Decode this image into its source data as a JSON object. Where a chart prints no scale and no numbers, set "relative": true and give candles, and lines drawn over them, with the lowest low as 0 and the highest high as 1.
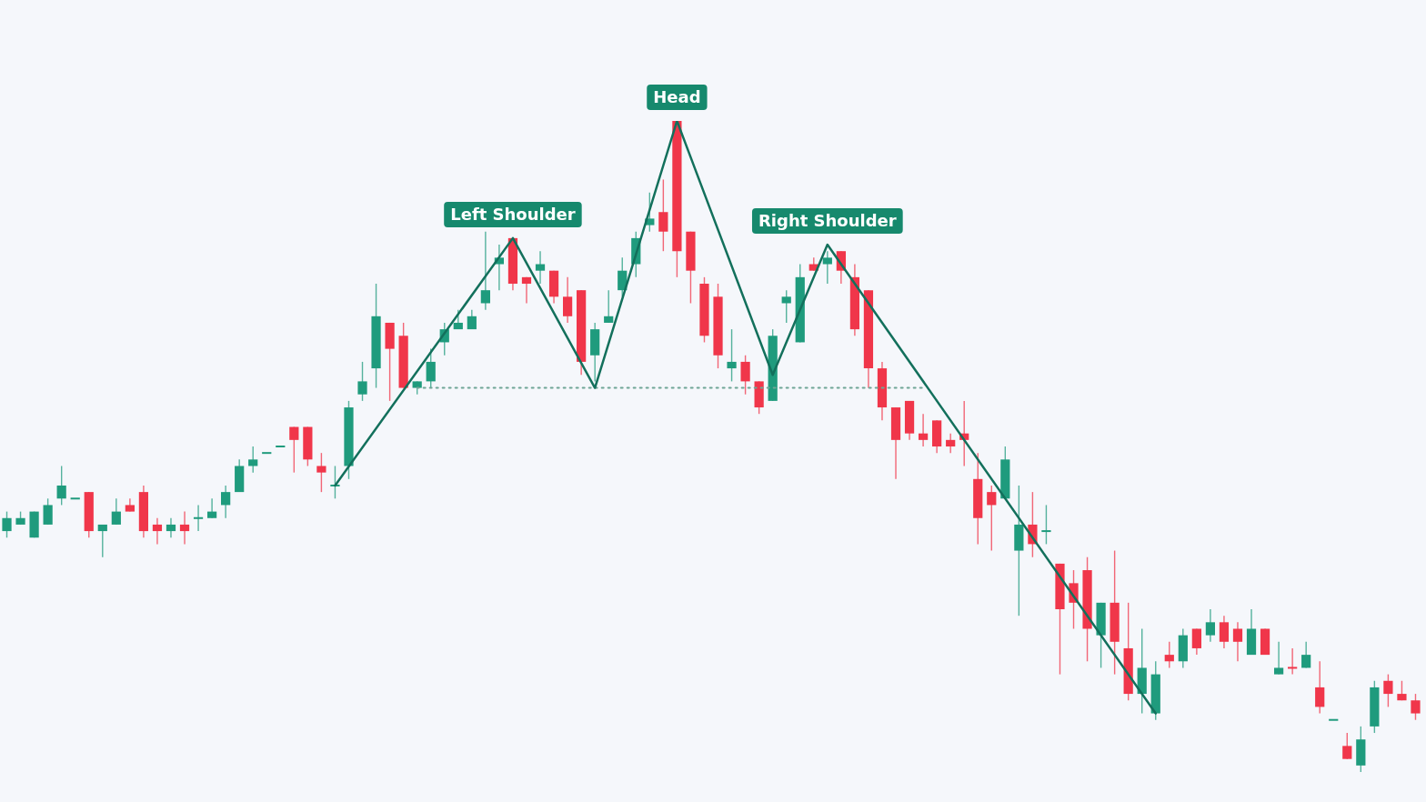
{
  "chart_data": {
    "type": "candlestick",
    "relative": true,
    "categories": [
      null,
      null,
      null,
      null,
      null,
      null,
      null,
      null,
      null,
      null,
      null,
      null,
      null,
      null,
      null,
      null,
      null,
      null,
      null,
      null,
      null,
      null,
      null,
      null,
      null,
      null,
      null,
      null,
      null,
      null,
      null,
      null,
      null,
      null,
      null,
      null,
      null,
      null,
      null,
      null,
      null,
      null,
      null,
      null,
      null,
      null,
      null,
      null,
      null,
      null,
      null,
      null,
      null,
      null,
      null,
      null,
      null,
      null,
      null,
      null,
      null,
      null,
      null,
      null,
      null,
      null,
      null,
      null,
      null,
      null,
      null,
      null,
      null,
      null,
      null,
      null,
      null,
      null,
      null,
      null,
      null,
      null,
      null,
      null,
      null,
      null,
      null,
      null,
      null,
      null,
      null,
      null,
      null,
      null,
      null,
      null,
      null,
      null,
      null,
      null,
      null,
      null,
      null,
      null
    ],
    "ohlc": [
      [
        0.37,
        0.4,
        0.36,
        0.39
      ],
      [
        0.38,
        0.4,
        0.38,
        0.39
      ],
      [
        0.36,
        0.4,
        0.36,
        0.4
      ],
      [
        0.38,
        0.42,
        0.38,
        0.41
      ],
      [
        0.42,
        0.47,
        0.41,
        0.44
      ],
      [
        0.42,
        0.42,
        0.42,
        0.42
      ],
      [
        0.43,
        0.43,
        0.36,
        0.37
      ],
      [
        0.37,
        0.38,
        0.33,
        0.38
      ],
      [
        0.38,
        0.42,
        0.38,
        0.4
      ],
      [
        0.41,
        0.42,
        0.4,
        0.4
      ],
      [
        0.43,
        0.44,
        0.36,
        0.37
      ],
      [
        0.38,
        0.39,
        0.35,
        0.37
      ],
      [
        0.37,
        0.39,
        0.36,
        0.38
      ],
      [
        0.38,
        0.4,
        0.35,
        0.37
      ],
      [
        0.39,
        0.41,
        0.37,
        0.39
      ],
      [
        0.39,
        0.42,
        0.39,
        0.4
      ],
      [
        0.41,
        0.44,
        0.39,
        0.43
      ],
      [
        0.43,
        0.48,
        0.43,
        0.47
      ],
      [
        0.47,
        0.5,
        0.46,
        0.48
      ],
      [
        0.49,
        0.49,
        0.49,
        0.49
      ],
      [
        0.5,
        0.5,
        0.5,
        0.5
      ],
      [
        0.53,
        0.53,
        0.46,
        0.51
      ],
      [
        0.53,
        0.53,
        0.47,
        0.48
      ],
      [
        0.47,
        0.49,
        0.43,
        0.46
      ],
      [
        0.44,
        0.47,
        0.42,
        0.44
      ],
      [
        0.47,
        0.57,
        0.45,
        0.56
      ],
      [
        0.58,
        0.63,
        0.57,
        0.6
      ],
      [
        0.62,
        0.75,
        0.59,
        0.7
      ],
      [
        0.69,
        0.69,
        0.57,
        0.65
      ],
      [
        0.67,
        0.69,
        0.59,
        0.59
      ],
      [
        0.59,
        0.6,
        0.58,
        0.6
      ],
      [
        0.6,
        0.65,
        0.59,
        0.63
      ],
      [
        0.66,
        0.69,
        0.64,
        0.68
      ],
      [
        0.68,
        0.71,
        0.68,
        0.69
      ],
      [
        0.68,
        0.71,
        0.68,
        0.7
      ],
      [
        0.72,
        0.83,
        0.71,
        0.74
      ],
      [
        0.78,
        0.81,
        0.74,
        0.79
      ],
      [
        0.82,
        0.82,
        0.74,
        0.75
      ],
      [
        0.76,
        0.76,
        0.72,
        0.75
      ],
      [
        0.77,
        0.8,
        0.75,
        0.78
      ],
      [
        0.77,
        0.77,
        0.72,
        0.73
      ],
      [
        0.73,
        0.76,
        0.69,
        0.7
      ],
      [
        0.74,
        0.74,
        0.61,
        0.63
      ],
      [
        0.64,
        0.69,
        0.6,
        0.68
      ],
      [
        0.69,
        0.74,
        0.69,
        0.7
      ],
      [
        0.74,
        0.79,
        0.73,
        0.77
      ],
      [
        0.78,
        0.83,
        0.76,
        0.82
      ],
      [
        0.84,
        0.89,
        0.83,
        0.85
      ],
      [
        0.86,
        0.91,
        0.8,
        0.83
      ],
      [
        1.0,
        1.0,
        0.76,
        0.8
      ],
      [
        0.83,
        0.83,
        0.72,
        0.77
      ],
      [
        0.75,
        0.76,
        0.66,
        0.67
      ],
      [
        0.73,
        0.75,
        0.62,
        0.64
      ],
      [
        0.62,
        0.68,
        0.6,
        0.63
      ],
      [
        0.63,
        0.64,
        0.58,
        0.6
      ],
      [
        0.6,
        0.6,
        0.55,
        0.56
      ],
      [
        0.57,
        0.68,
        0.57,
        0.67
      ],
      [
        0.72,
        0.74,
        0.69,
        0.73
      ],
      [
        0.66,
        0.78,
        0.66,
        0.76
      ],
      [
        0.78,
        0.79,
        0.77,
        0.77
      ],
      [
        0.78,
        0.8,
        0.75,
        0.79
      ],
      [
        0.8,
        0.8,
        0.75,
        0.77
      ],
      [
        0.76,
        0.78,
        0.67,
        0.68
      ],
      [
        0.74,
        0.74,
        0.59,
        0.62
      ],
      [
        0.62,
        0.63,
        0.54,
        0.56
      ],
      [
        0.56,
        0.56,
        0.45,
        0.51
      ],
      [
        0.57,
        0.57,
        0.51,
        0.52
      ],
      [
        0.52,
        0.55,
        0.5,
        0.51
      ],
      [
        0.54,
        0.54,
        0.49,
        0.5
      ],
      [
        0.51,
        0.52,
        0.49,
        0.5
      ],
      [
        0.52,
        0.57,
        0.47,
        0.51
      ],
      [
        0.45,
        0.49,
        0.35,
        0.39
      ],
      [
        0.43,
        0.44,
        0.34,
        0.41
      ],
      [
        0.42,
        0.5,
        0.42,
        0.48
      ],
      [
        0.34,
        0.44,
        0.24,
        0.38
      ],
      [
        0.38,
        0.43,
        0.33,
        0.35
      ],
      [
        0.37,
        0.41,
        0.35,
        0.37
      ],
      [
        0.32,
        0.32,
        0.15,
        0.25
      ],
      [
        0.29,
        0.31,
        0.22,
        0.26
      ],
      [
        0.31,
        0.33,
        0.17,
        0.22
      ],
      [
        0.21,
        0.26,
        0.16,
        0.26
      ],
      [
        0.26,
        0.34,
        0.15,
        0.2
      ],
      [
        0.19,
        0.26,
        0.11,
        0.12
      ],
      [
        0.12,
        0.22,
        0.09,
        0.16
      ],
      [
        0.09,
        0.17,
        0.08,
        0.15
      ],
      [
        0.18,
        0.2,
        0.16,
        0.17
      ],
      [
        0.17,
        0.22,
        0.16,
        0.21
      ],
      [
        0.22,
        0.22,
        0.18,
        0.19
      ],
      [
        0.21,
        0.25,
        0.2,
        0.23
      ],
      [
        0.23,
        0.24,
        0.19,
        0.2
      ],
      [
        0.22,
        0.23,
        0.17,
        0.2
      ],
      [
        0.18,
        0.25,
        0.18,
        0.22
      ],
      [
        0.22,
        0.22,
        0.18,
        0.18
      ],
      [
        0.15,
        0.2,
        0.15,
        0.16
      ],
      [
        0.16,
        0.19,
        0.15,
        0.16
      ],
      [
        0.16,
        0.2,
        0.16,
        0.18
      ],
      [
        0.13,
        0.17,
        0.09,
        0.1
      ],
      [
        0.08,
        0.08,
        0.08,
        0.08
      ],
      [
        0.04,
        0.06,
        0.02,
        0.02
      ],
      [
        0.01,
        0.07,
        0,
        0.05
      ],
      [
        0.07,
        0.14,
        0.06,
        0.13
      ],
      [
        0.14,
        0.15,
        0.1,
        0.12
      ],
      [
        0.12,
        0.14,
        0.11,
        0.11
      ],
      [
        0.11,
        0.12,
        0.08,
        0.09
      ]
    ],
    "colors": [
      "#1f9b7d",
      "#1f9b7d",
      "#1f9b7d",
      "#1f9b7d",
      "#1f9b7d",
      "#1f9b7d",
      "#f0364a",
      "#1f9b7d",
      "#1f9b7d",
      "#f0364a",
      "#f0364a",
      "#f0364a",
      "#1f9b7d",
      "#f0364a",
      "#1f9b7d",
      "#1f9b7d",
      "#1f9b7d",
      "#1f9b7d",
      "#1f9b7d",
      "#1f9b7d",
      "#1f9b7d",
      "#f0364a",
      "#f0364a",
      "#f0364a",
      "#1f9b7d",
      "#1f9b7d",
      "#1f9b7d",
      "#1f9b7d",
      "#f0364a",
      "#f0364a",
      "#1f9b7d",
      "#1f9b7d",
      "#1f9b7d",
      "#1f9b7d",
      "#1f9b7d",
      "#1f9b7d",
      "#1f9b7d",
      "#f0364a",
      "#f0364a",
      "#1f9b7d",
      "#f0364a",
      "#f0364a",
      "#f0364a",
      "#1f9b7d",
      "#1f9b7d",
      "#1f9b7d",
      "#1f9b7d",
      "#1f9b7d",
      "#f0364a",
      "#f0364a",
      "#f0364a",
      "#f0364a",
      "#f0364a",
      "#1f9b7d",
      "#f0364a",
      "#f0364a",
      "#1f9b7d",
      "#1f9b7d",
      "#1f9b7d",
      "#f0364a",
      "#1f9b7d",
      "#f0364a",
      "#f0364a",
      "#f0364a",
      "#f0364a",
      "#f0364a",
      "#f0364a",
      "#f0364a",
      "#f0364a",
      "#f0364a",
      "#f0364a",
      "#f0364a",
      "#f0364a",
      "#1f9b7d",
      "#1f9b7d",
      "#f0364a",
      "#1f9b7d",
      "#f0364a",
      "#f0364a",
      "#f0364a",
      "#1f9b7d",
      "#f0364a",
      "#f0364a",
      "#1f9b7d",
      "#1f9b7d",
      "#f0364a",
      "#1f9b7d",
      "#f0364a",
      "#1f9b7d",
      "#f0364a",
      "#f0364a",
      "#1f9b7d",
      "#f0364a",
      "#1f9b7d",
      "#f0364a",
      "#1f9b7d",
      "#f0364a",
      "#1f9b7d",
      "#f0364a",
      "#1f9b7d",
      "#1f9b7d",
      "#f0364a",
      "#f0364a",
      "#f0364a"
    ],
    "series": [
      {
        "type": "line",
        "color": "#13705c",
        "values": [
          null,
          null,
          null,
          null,
          null,
          null,
          null,
          null,
          null,
          null,
          null,
          null,
          null,
          null,
          null,
          null,
          null,
          null,
          null,
          null,
          null,
          null,
          null,
          null,
          0.44,
          null,
          null,
          null,
          null,
          null,
          null,
          null,
          null,
          null,
          null,
          null,
          null,
          0.82,
          null,
          null,
          null,
          null,
          null,
          0.59,
          null,
          null,
          null,
          null,
          null,
          1.0,
          null,
          null,
          null,
          null,
          null,
          null,
          0.61,
          null,
          null,
          null,
          0.81,
          null,
          null,
          null,
          null,
          null,
          null,
          null,
          null,
          null,
          null,
          null,
          null,
          null,
          null,
          null,
          null,
          null,
          null,
          null,
          null,
          null,
          null,
          null,
          0.09,
          null,
          null,
          null,
          null,
          null,
          null,
          null,
          null,
          null,
          null,
          null,
          null,
          null,
          null,
          null,
          null,
          null,
          null,
          null
        ]
      },
      {
        "type": "line",
        "color": "#6fa596",
        "line_style": "dotted",
        "values": [
          null,
          null,
          null,
          null,
          null,
          null,
          null,
          null,
          null,
          null,
          null,
          null,
          null,
          null,
          null,
          null,
          null,
          null,
          null,
          null,
          null,
          null,
          null,
          null,
          null,
          null,
          null,
          null,
          null,
          null,
          0.59,
          null,
          null,
          null,
          null,
          null,
          null,
          null,
          null,
          null,
          null,
          null,
          null,
          null,
          null,
          null,
          null,
          null,
          null,
          null,
          null,
          null,
          null,
          null,
          null,
          null,
          null,
          null,
          null,
          null,
          null,
          null,
          null,
          null,
          null,
          null,
          null,
          0.59,
          null,
          null,
          null,
          null,
          null,
          null,
          null,
          null,
          null,
          null,
          null,
          null,
          null,
          null,
          null,
          null,
          null,
          null,
          null,
          null,
          null,
          null,
          null,
          null,
          null,
          null,
          null,
          null,
          null,
          null,
          null,
          null,
          null,
          null,
          null,
          null
        ]
      }
    ],
    "annotations": [
      "Left Shoulder",
      "Head",
      "Right Shoulder"
    ]
  }
}
